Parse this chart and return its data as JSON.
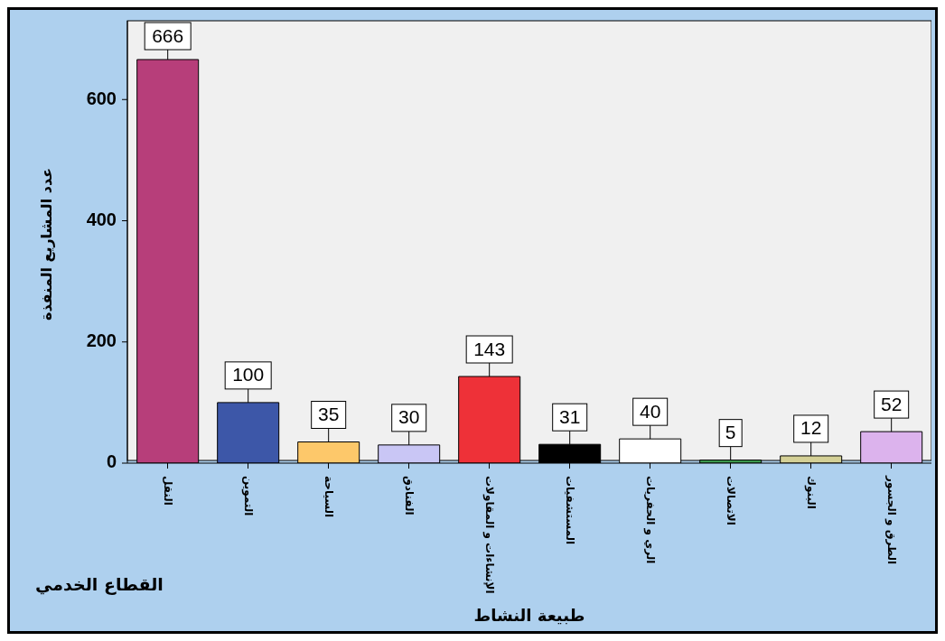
{
  "chart_data": {
    "type": "bar",
    "xlabel": "طبيعة النشاط",
    "ylabel": "عدد المشاريع المنفذة",
    "annotations": [
      "القطاع الخدمي"
    ],
    "categories": [
      "النقل",
      "التموين",
      "السياحة",
      "الفنادق",
      "الإنشاءات و المقاولات",
      "المستشفيات",
      "الري و الحفريات",
      "الاتصالات",
      "البنوك",
      "الطرق و الجسور"
    ],
    "values": [
      666,
      100,
      35,
      30,
      143,
      31,
      40,
      5,
      12,
      52
    ],
    "colors": [
      "#b73e7a",
      "#3d57a8",
      "#fdc86a",
      "#c9c6f5",
      "#ee3138",
      "#000000",
      "#ffffff",
      "#3fa050",
      "#d4d096",
      "#dcb3ed"
    ],
    "ylim": [
      0,
      730
    ],
    "yticks": [
      0,
      200,
      400,
      600
    ],
    "data_labels": true
  }
}
